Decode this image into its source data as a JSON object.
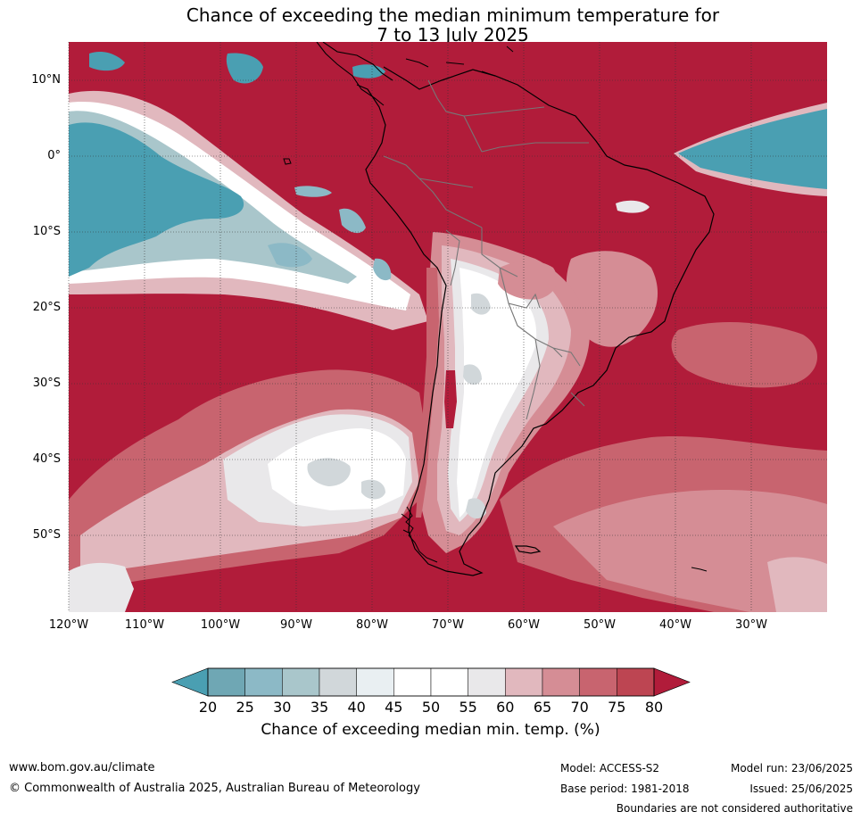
{
  "title": {
    "line1": "Chance of exceeding the median minimum temperature for",
    "line2": "7 to 13 July 2025"
  },
  "map": {
    "projection": "lat-lon",
    "lon_range": [
      -120,
      -20
    ],
    "lat_range": [
      -60,
      15
    ],
    "lat_labels": [
      "10°N",
      "0°",
      "10°S",
      "20°S",
      "30°S",
      "40°S",
      "50°S"
    ],
    "lat_values": [
      10,
      0,
      -10,
      -20,
      -30,
      -40,
      -50
    ],
    "lon_labels": [
      "120°W",
      "110°W",
      "100°W",
      "90°W",
      "80°W",
      "70°W",
      "60°W",
      "50°W",
      "40°W",
      "30°W"
    ],
    "lon_values": [
      -120,
      -110,
      -100,
      -90,
      -80,
      -70,
      -60,
      -50,
      -40,
      -30
    ],
    "grid": true,
    "dominant_category": "80",
    "features": [
      {
        "name": "pacific-cool-band",
        "category": "20",
        "lon": [
          -120,
          -78
        ],
        "lat": [
          -18,
          8
        ]
      },
      {
        "name": "atlantic-cool-tongue",
        "category": "20",
        "lon": [
          -45,
          -20
        ],
        "lat": [
          -4,
          5
        ]
      },
      {
        "name": "andes-neutral",
        "category": "50",
        "lon": [
          -72,
          -58
        ],
        "lat": [
          -45,
          -15
        ]
      },
      {
        "name": "south-pacific-neutral",
        "category": "55",
        "lon": [
          -105,
          -72
        ],
        "lat": [
          -50,
          -30
        ]
      }
    ]
  },
  "colorbar": {
    "tick_labels": [
      "20",
      "25",
      "30",
      "35",
      "40",
      "45",
      "50",
      "55",
      "60",
      "65",
      "70",
      "75",
      "80"
    ],
    "segment_colors": [
      "#6fa7b4",
      "#8cb9c6",
      "#a9c6cb",
      "#d1d7da",
      "#e9eff2",
      "#ffffff",
      "#ffffff",
      "#e9e8ea",
      "#e1b8be",
      "#d58d95",
      "#c8646f",
      "#bd4552"
    ],
    "low_color": "#4a9fb2",
    "high_color": "#b11c3a",
    "title": "Chance of exceeding median min. temp. (%)"
  },
  "footer": {
    "website": "www.bom.gov.au/climate",
    "copyright": "© Commonwealth of Australia 2025, Australian Bureau of Meteorology",
    "model": "Model: ACCESS-S2",
    "base_period": "Base period: 1981-2018",
    "model_run": "Model run: 23/06/2025",
    "issued": "Issued: 25/06/2025",
    "disclaimer": "Boundaries are not considered authoritative"
  }
}
